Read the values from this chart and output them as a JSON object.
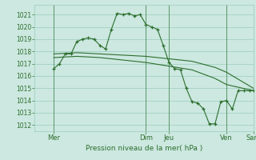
{
  "background_color": "#cce8e0",
  "grid_color": "#99ccbb",
  "line_color": "#2d6e2d",
  "marker_color": "#2d6e2d",
  "xlabel": "Pression niveau de la mer( hPa )",
  "ylim": [
    1011.5,
    1021.8
  ],
  "yticks": [
    1012,
    1013,
    1014,
    1015,
    1016,
    1017,
    1018,
    1019,
    1020,
    1021
  ],
  "xlim": [
    0,
    228
  ],
  "x_vlines": [
    20,
    116,
    140,
    200,
    228
  ],
  "x_tick_positions": [
    20,
    116,
    140,
    200,
    228
  ],
  "x_tick_labels": [
    "Mer",
    "Dim",
    "Jeu",
    "Ven",
    "Sam"
  ],
  "series1_x": [
    20,
    26,
    32,
    38,
    44,
    50,
    56,
    62,
    68,
    74,
    80,
    86,
    92,
    98,
    104,
    110,
    116,
    122,
    128,
    134,
    140,
    146,
    152,
    158,
    164,
    170,
    176,
    182,
    188,
    194,
    200,
    206,
    212,
    218,
    224,
    228
  ],
  "series1_y": [
    1016.6,
    1017.0,
    1017.8,
    1017.8,
    1018.8,
    1019.0,
    1019.1,
    1019.0,
    1018.5,
    1018.2,
    1019.8,
    1021.1,
    1021.0,
    1021.1,
    1020.9,
    1021.0,
    1020.2,
    1020.0,
    1019.8,
    1018.5,
    1017.1,
    1016.6,
    1016.5,
    1015.0,
    1013.9,
    1013.8,
    1013.3,
    1012.1,
    1012.1,
    1013.9,
    1014.0,
    1013.3,
    1014.8,
    1014.8,
    1014.8,
    1014.8
  ],
  "series2_x": [
    20,
    44,
    68,
    92,
    116,
    140,
    164,
    188,
    200,
    228
  ],
  "series2_y": [
    1017.8,
    1017.9,
    1017.8,
    1017.7,
    1017.6,
    1017.4,
    1017.2,
    1016.7,
    1016.3,
    1015.0
  ],
  "series3_x": [
    20,
    44,
    68,
    92,
    116,
    140,
    164,
    188,
    200,
    228
  ],
  "series3_y": [
    1017.5,
    1017.6,
    1017.5,
    1017.3,
    1017.1,
    1016.8,
    1016.5,
    1015.8,
    1015.3,
    1014.8
  ]
}
